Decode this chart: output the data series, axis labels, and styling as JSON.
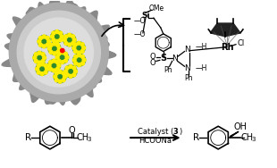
{
  "bg_color": "#ffffff",
  "fig_width": 3.1,
  "fig_height": 1.88,
  "dpi": 100,
  "outer_shell_color": "#888888",
  "mid_shell_color": "#aaaaaa",
  "inner_shell_color": "#cccccc",
  "center_color": "#dddddd",
  "particle_green": "#2d8a2d",
  "particle_yellow": "#ffee00",
  "text_color": "#000000",
  "arrow_color": "#000000",
  "catalyst_text": "Catalyst (",
  "catalyst_bold": "3",
  "catalyst_end": ")",
  "reagent_text": "HCOONa"
}
